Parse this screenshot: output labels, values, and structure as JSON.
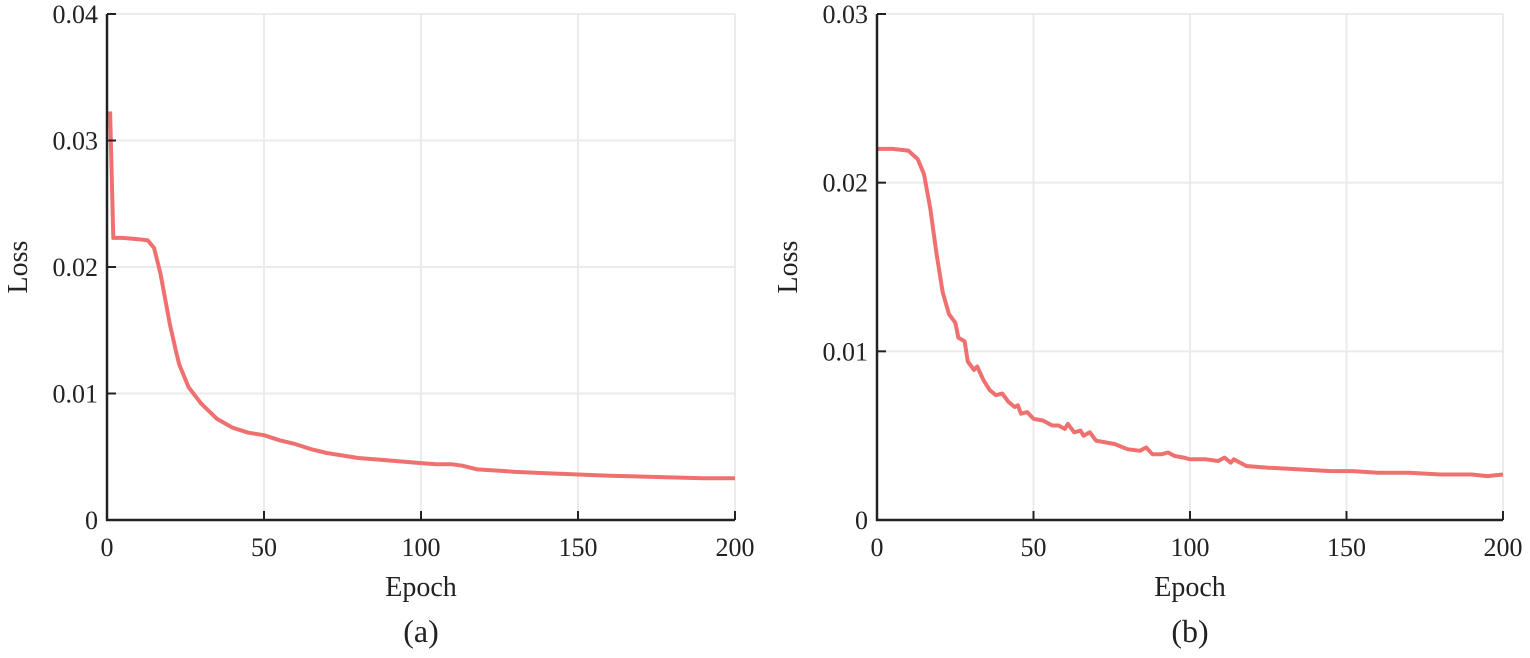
{
  "chart_data": [
    {
      "type": "line",
      "panel_label": "(a)",
      "xlabel": "Epoch",
      "ylabel": "Loss",
      "xlim": [
        0,
        200
      ],
      "ylim": [
        0,
        0.04
      ],
      "xticks": [
        0,
        50,
        100,
        150,
        200
      ],
      "yticks": [
        0,
        0.01,
        0.02,
        0.03,
        0.04
      ],
      "ytick_labels": [
        "0",
        "0.01",
        "0.02",
        "0.03",
        "0.04"
      ],
      "grid": true,
      "color": "#f07070",
      "series": [
        {
          "name": "loss",
          "x": [
            1,
            2,
            5,
            10,
            13,
            15,
            17,
            20,
            22,
            23,
            26,
            30,
            35,
            40,
            45,
            50,
            55,
            60,
            65,
            70,
            75,
            80,
            90,
            100,
            105,
            110,
            113,
            118,
            125,
            130,
            140,
            150,
            160,
            175,
            190,
            200
          ],
          "y": [
            0.0323,
            0.0223,
            0.0223,
            0.0222,
            0.0221,
            0.0215,
            0.0195,
            0.0155,
            0.0133,
            0.0123,
            0.0105,
            0.0092,
            0.008,
            0.0073,
            0.0069,
            0.0067,
            0.0063,
            0.006,
            0.0056,
            0.0053,
            0.0051,
            0.0049,
            0.0047,
            0.0045,
            0.0044,
            0.0044,
            0.0043,
            0.004,
            0.0039,
            0.0038,
            0.0037,
            0.0036,
            0.0035,
            0.0034,
            0.0033,
            0.0033
          ]
        }
      ]
    },
    {
      "type": "line",
      "panel_label": "(b)",
      "xlabel": "Epoch",
      "ylabel": "Loss",
      "xlim": [
        0,
        200
      ],
      "ylim": [
        0,
        0.03
      ],
      "xticks": [
        0,
        50,
        100,
        150,
        200
      ],
      "yticks": [
        0,
        0.01,
        0.02,
        0.03
      ],
      "ytick_labels": [
        "0",
        "0.01",
        "0.02",
        "0.03"
      ],
      "grid": true,
      "color": "#f07070",
      "series": [
        {
          "name": "loss",
          "x": [
            0,
            5,
            10,
            13,
            15,
            17,
            19,
            21,
            23,
            25,
            26,
            28,
            29,
            31,
            32,
            34,
            36,
            38,
            40,
            42,
            44,
            45,
            46,
            48,
            50,
            53,
            56,
            58,
            60,
            61,
            63,
            65,
            66,
            68,
            70,
            73,
            76,
            80,
            84,
            86,
            88,
            91,
            93,
            95,
            98,
            100,
            105,
            109,
            111,
            113,
            114,
            118,
            125,
            135,
            145,
            150,
            152,
            160,
            170,
            180,
            185,
            190,
            195,
            200
          ],
          "y": [
            0.022,
            0.022,
            0.0219,
            0.0214,
            0.0205,
            0.0185,
            0.0158,
            0.0135,
            0.0122,
            0.0117,
            0.0108,
            0.0106,
            0.0094,
            0.0089,
            0.0091,
            0.0083,
            0.0077,
            0.0074,
            0.0075,
            0.007,
            0.0067,
            0.0068,
            0.0063,
            0.0064,
            0.006,
            0.0059,
            0.0056,
            0.0056,
            0.0054,
            0.0057,
            0.0052,
            0.0053,
            0.005,
            0.0052,
            0.0047,
            0.0046,
            0.0045,
            0.0042,
            0.0041,
            0.0043,
            0.0039,
            0.0039,
            0.004,
            0.0038,
            0.0037,
            0.0036,
            0.0036,
            0.0035,
            0.0037,
            0.0034,
            0.0036,
            0.0032,
            0.0031,
            0.003,
            0.0029,
            0.0029,
            0.0029,
            0.0028,
            0.0028,
            0.0027,
            0.0027,
            0.0027,
            0.0026,
            0.0027
          ]
        }
      ]
    }
  ]
}
